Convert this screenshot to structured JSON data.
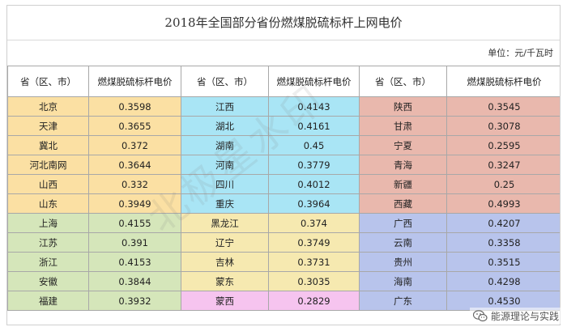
{
  "title": "2018年全国部分省份燃煤脱硫标杆上网电价",
  "unit": "单位：元/千瓦时",
  "headers": [
    "省（区、市）",
    "燃煤脱硫标杆电价",
    "省（区、市）",
    "燃煤脱硫标杆电价",
    "省（区、市）",
    "燃煤脱硫标杆电价"
  ],
  "rows": [
    [
      "北京",
      "0.3598",
      "江西",
      "0.4143",
      "陕西",
      "0.3545"
    ],
    [
      "天津",
      "0.3655",
      "湖北",
      "0.4161",
      "甘肃",
      "0.3078"
    ],
    [
      "冀北",
      "0.372",
      "湖南",
      "0.45",
      "宁夏",
      "0.2595"
    ],
    [
      "河北南网",
      "0.3644",
      "河南",
      "0.3779",
      "青海",
      "0.3247"
    ],
    [
      "山西",
      "0.332",
      "四川",
      "0.4012",
      "新疆",
      "0.25"
    ],
    [
      "山东",
      "0.3949",
      "重庆",
      "0.3964",
      "西藏",
      "0.4993"
    ],
    [
      "上海",
      "0.4155",
      "黑龙江",
      "0.374",
      "广西",
      "0.4207"
    ],
    [
      "江苏",
      "0.391",
      "辽宁",
      "0.3749",
      "云南",
      "0.3358"
    ],
    [
      "浙江",
      "0.4153",
      "吉林",
      "0.3731",
      "贵州",
      "0.3515"
    ],
    [
      "安徽",
      "0.3844",
      "蒙东",
      "0.3035",
      "海南",
      "0.4298"
    ],
    [
      "福建",
      "0.3932",
      "蒙西",
      "0.2829",
      "广东",
      "0.4530"
    ]
  ],
  "colors": {
    "orange": "#fbe0a3",
    "cyan": "#a9e5f5",
    "rose": "#e9b8ad",
    "green": "#d5e6ba",
    "cream": "#f6e9b0",
    "blue": "#b8c4ec",
    "pink": "#f6c4ef"
  },
  "watermark": "北极星水印",
  "wechat_label": "能源理论与实践",
  "wechat_icon": "wechat-icon"
}
